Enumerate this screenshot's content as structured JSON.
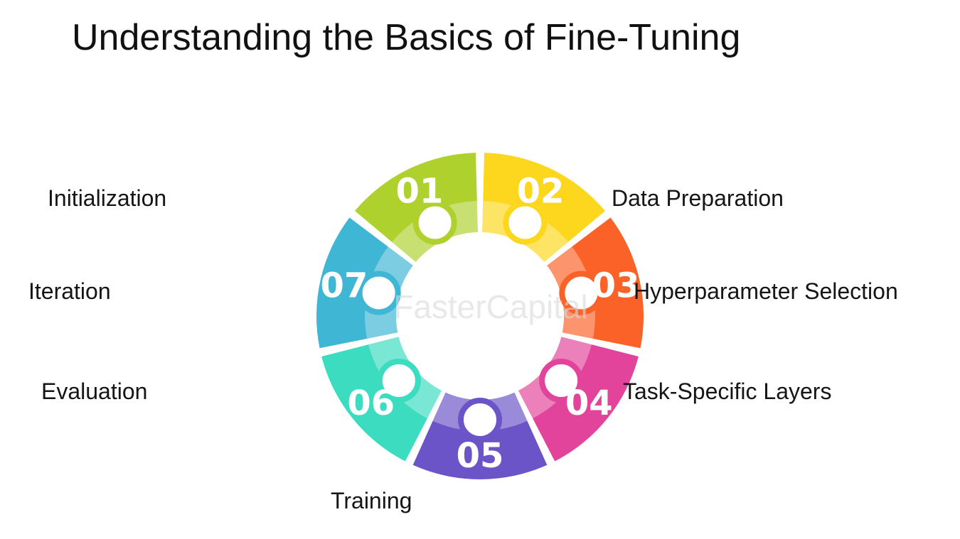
{
  "title": "Understanding the Basics of Fine-Tuning",
  "steps": [
    {
      "number": "01",
      "label": "Initialization",
      "color": "#aed12e"
    },
    {
      "number": "02",
      "label": "Data Preparation",
      "color": "#fcd71d"
    },
    {
      "number": "03",
      "label": "Hyperparameter Selection",
      "color": "#fb6228"
    },
    {
      "number": "04",
      "label": "Task-Specific Layers",
      "color": "#e2449b"
    },
    {
      "number": "05",
      "label": "Training",
      "color": "#6b54c7"
    },
    {
      "number": "06",
      "label": "Evaluation",
      "color": "#3cdcc0"
    },
    {
      "number": "07",
      "label": "Iteration",
      "color": "#3eb6d4"
    }
  ],
  "watermark": "FasterCapital"
}
